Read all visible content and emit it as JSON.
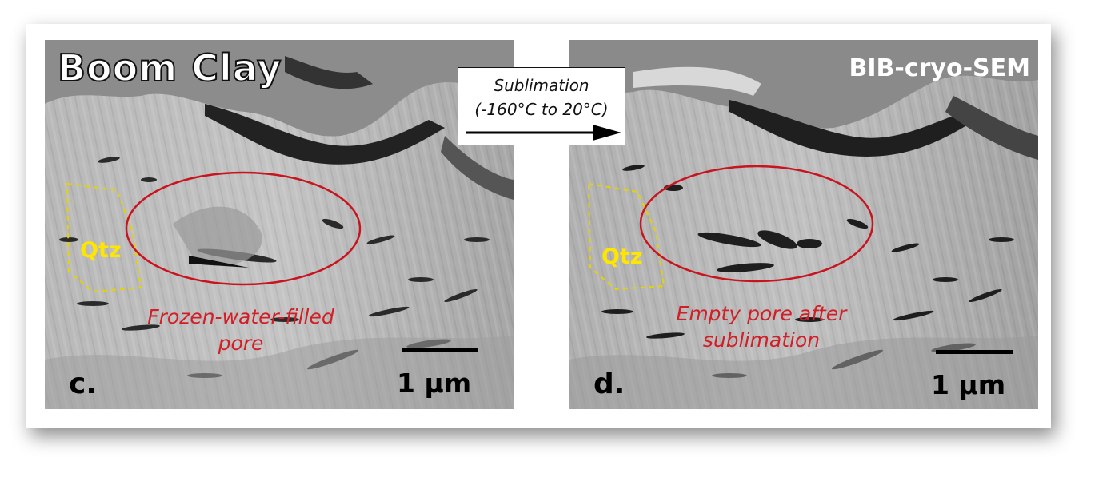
{
  "title": "Boom Clay",
  "method": "BIB-cryo-SEM",
  "process": {
    "line1": "Sublimation",
    "line2": "(-160°C to 20°C)"
  },
  "panels": [
    {
      "letter": "c.",
      "mineral": "Qtz",
      "annotation_line1": "Frozen-water-filled",
      "annotation_line2": "pore",
      "scale_label": "1 µm"
    },
    {
      "letter": "d.",
      "mineral": "Qtz",
      "annotation_line1": "Empty pore after",
      "annotation_line2": "sublimation",
      "scale_label": "1 µm"
    }
  ],
  "colors": {
    "ellipse": "#c8141e",
    "annotation": "#d11f27",
    "qtz": "#ffe600"
  }
}
